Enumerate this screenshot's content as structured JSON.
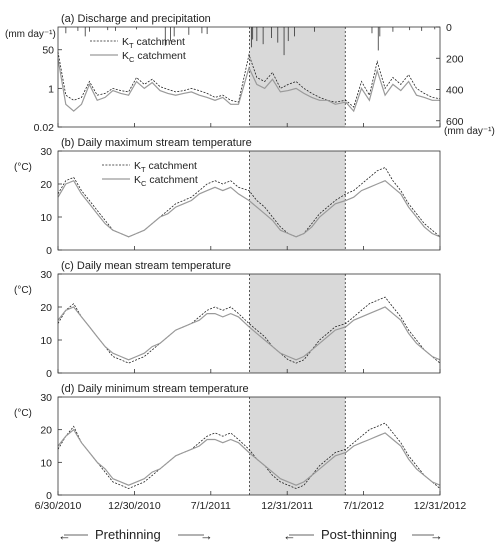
{
  "chart_data": {
    "type": "line",
    "x_tick_labels": [
      "6/30/2010",
      "12/30/2010",
      "7/1/2011",
      "12/31/2011",
      "7/1/2012",
      "12/31/2012"
    ],
    "shaded_period": [
      "7/1/2011",
      "12/31/2011"
    ],
    "period_labels": {
      "left": "Prethinning",
      "right": "Post-thinning"
    },
    "legend": [
      {
        "main": "K",
        "sub": "T",
        "rest": " catchment"
      },
      {
        "main": "K",
        "sub": "C",
        "rest": " catchment"
      }
    ],
    "panels": [
      {
        "id": "a",
        "title": "(a) Discharge and precipitation",
        "ylabel": "(mm day⁻¹)",
        "y_scale": "log",
        "ylim": [
          0.02,
          500
        ],
        "yticks": [
          "50",
          "1",
          "0.02"
        ],
        "y2_label": "(mm day⁻¹)",
        "y2_ticks": [
          "0",
          "200",
          "400",
          "600"
        ],
        "y2_lim": [
          0,
          640
        ],
        "series": [
          {
            "name": "KT catchment",
            "x": [
              0,
              15,
              30,
              45,
              60,
              75,
              90,
              105,
              120,
              135,
              150,
              165,
              180,
              195,
              210,
              225,
              240,
              255,
              270,
              285,
              300,
              315,
              330,
              345,
              365,
              380,
              395,
              410,
              425,
              440,
              455,
              470,
              485,
              500,
              515,
              530,
              550,
              565,
              580,
              595,
              610,
              625,
              640,
              655,
              670,
              685,
              700,
              715,
              730
            ],
            "values": [
              40,
              0.5,
              0.3,
              0.4,
              2.0,
              0.5,
              0.6,
              1.0,
              0.8,
              0.7,
              3.0,
              1.5,
              2.5,
              1.2,
              0.9,
              0.7,
              0.8,
              1.0,
              0.8,
              0.6,
              0.4,
              0.5,
              0.3,
              0.25,
              30,
              3.0,
              2.0,
              5.0,
              1.0,
              1.5,
              2.0,
              1.0,
              0.6,
              0.4,
              0.3,
              0.25,
              0.3,
              0.15,
              2.0,
              0.5,
              15,
              1.0,
              3.0,
              1.5,
              4.0,
              1.0,
              0.6,
              0.4,
              0.35
            ]
          },
          {
            "name": "KC catchment",
            "x": [
              0,
              15,
              30,
              45,
              60,
              75,
              90,
              105,
              120,
              135,
              150,
              165,
              180,
              195,
              210,
              225,
              240,
              255,
              270,
              285,
              300,
              315,
              330,
              345,
              365,
              380,
              395,
              410,
              425,
              440,
              455,
              470,
              485,
              500,
              515,
              530,
              550,
              565,
              580,
              595,
              610,
              625,
              640,
              655,
              670,
              685,
              700,
              715,
              730
            ],
            "values": [
              20,
              0.2,
              0.1,
              0.2,
              1.5,
              0.3,
              0.4,
              0.8,
              0.6,
              0.5,
              2.0,
              1.0,
              1.8,
              0.8,
              0.6,
              0.5,
              0.6,
              0.7,
              0.5,
              0.4,
              0.3,
              0.4,
              0.2,
              0.2,
              8.0,
              1.5,
              1.0,
              2.5,
              0.7,
              0.8,
              1.0,
              0.6,
              0.4,
              0.3,
              0.3,
              0.2,
              0.25,
              0.1,
              1.0,
              0.3,
              6.0,
              0.5,
              1.5,
              0.8,
              2.0,
              0.5,
              0.4,
              0.3,
              0.3
            ]
          },
          {
            "name": "Precipitation",
            "x": [
              15,
              38,
              52,
              60,
              95,
              110,
              150,
              205,
              215,
              222,
              250,
              275,
              285,
              370,
              372,
              380,
              392,
              408,
              420,
              432,
              440,
              452,
              490,
              600,
              612,
              615,
              640,
              672,
              695,
              720
            ],
            "values": [
              40,
              25,
              60,
              30,
              20,
              25,
              15,
              120,
              90,
              60,
              50,
              40,
              45,
              130,
              80,
              90,
              110,
              70,
              100,
              180,
              90,
              60,
              30,
              40,
              150,
              60,
              30,
              20,
              25,
              15
            ]
          }
        ]
      },
      {
        "id": "b",
        "title": "(b) Daily maximum stream temperature",
        "ylabel": "(°C)",
        "ylim": [
          0,
          30
        ],
        "yticks": [
          0,
          10,
          20,
          30
        ],
        "series": [
          {
            "name": "KT catchment",
            "x": [
              0,
              15,
              30,
              45,
              60,
              75,
              90,
              105,
              120,
              135,
              150,
              165,
              180,
              195,
              210,
              225,
              240,
              255,
              270,
              285,
              300,
              315,
              330,
              345,
              365,
              380,
              395,
              410,
              425,
              440,
              455,
              470,
              485,
              500,
              515,
              530,
              550,
              565,
              580,
              595,
              610,
              625,
              640,
              655,
              670,
              685,
              700,
              715,
              730
            ],
            "values": [
              17,
              21,
              22,
              18,
              15,
              12,
              9,
              6,
              5,
              4,
              5,
              6,
              8,
              10,
              12,
              14,
              15,
              16,
              18,
              20,
              21,
              20,
              21,
              19,
              18,
              15,
              13,
              10,
              7,
              5,
              4,
              5,
              8,
              11,
              13,
              15,
              17,
              18,
              20,
              22,
              24,
              25,
              21,
              18,
              14,
              11,
              8,
              6,
              4
            ]
          },
          {
            "name": "KC catchment",
            "x": [
              0,
              15,
              30,
              45,
              60,
              75,
              90,
              105,
              120,
              135,
              150,
              165,
              180,
              195,
              210,
              225,
              240,
              255,
              270,
              285,
              300,
              315,
              330,
              345,
              365,
              380,
              395,
              410,
              425,
              440,
              455,
              470,
              485,
              500,
              515,
              530,
              550,
              565,
              580,
              595,
              610,
              625,
              640,
              655,
              670,
              685,
              700,
              715,
              730
            ],
            "values": [
              16,
              20,
              21,
              17,
              14,
              11,
              8,
              6,
              5,
              4,
              5,
              6,
              8,
              10,
              11,
              13,
              14,
              15,
              17,
              18,
              19,
              18,
              19,
              17,
              15,
              13,
              11,
              9,
              6,
              5,
              4,
              5,
              7,
              10,
              12,
              14,
              15,
              16,
              18,
              19,
              20,
              21,
              19,
              17,
              13,
              10,
              7,
              5,
              4
            ]
          }
        ]
      },
      {
        "id": "c",
        "title": "(c) Daily mean stream temperature",
        "ylabel": "(°C)",
        "ylim": [
          0,
          30
        ],
        "yticks": [
          0,
          10,
          20,
          30
        ],
        "series": [
          {
            "name": "KT catchment",
            "x": [
              0,
              15,
              30,
              45,
              60,
              75,
              90,
              105,
              120,
              135,
              150,
              165,
              180,
              195,
              210,
              225,
              240,
              255,
              270,
              285,
              300,
              315,
              330,
              345,
              365,
              380,
              395,
              410,
              425,
              440,
              455,
              470,
              485,
              500,
              515,
              530,
              550,
              565,
              580,
              595,
              610,
              625,
              640,
              655,
              670,
              685,
              700,
              715,
              730
            ],
            "values": [
              15,
              19,
              21,
              17,
              14,
              11,
              8,
              5,
              4,
              3,
              4,
              5,
              7,
              9,
              11,
              13,
              14,
              15,
              17,
              19,
              20,
              19,
              20,
              18,
              15,
              13,
              11,
              8,
              6,
              4,
              3,
              4,
              7,
              10,
              12,
              14,
              15,
              17,
              19,
              21,
              22,
              23,
              20,
              17,
              13,
              10,
              7,
              5,
              3
            ]
          },
          {
            "name": "KC catchment",
            "x": [
              0,
              15,
              30,
              45,
              60,
              75,
              90,
              105,
              120,
              135,
              150,
              165,
              180,
              195,
              210,
              225,
              240,
              255,
              270,
              285,
              300,
              315,
              330,
              345,
              365,
              380,
              395,
              410,
              425,
              440,
              455,
              470,
              485,
              500,
              515,
              530,
              550,
              565,
              580,
              595,
              610,
              625,
              640,
              655,
              670,
              685,
              700,
              715,
              730
            ],
            "values": [
              16,
              19,
              20,
              17,
              14,
              11,
              8,
              6,
              5,
              4,
              5,
              6,
              8,
              9,
              11,
              13,
              14,
              15,
              16,
              18,
              18,
              17,
              18,
              17,
              14,
              12,
              10,
              8,
              6,
              5,
              4,
              5,
              7,
              9,
              11,
              13,
              14,
              16,
              17,
              18,
              19,
              20,
              18,
              16,
              12,
              9,
              7,
              5,
              4
            ]
          }
        ]
      },
      {
        "id": "d",
        "title": "(d) Daily minimum stream temperature",
        "ylabel": "(°C)",
        "ylim": [
          0,
          30
        ],
        "yticks": [
          0,
          10,
          20,
          30
        ],
        "series": [
          {
            "name": "KT catchment",
            "x": [
              0,
              15,
              30,
              45,
              60,
              75,
              90,
              105,
              120,
              135,
              150,
              165,
              180,
              195,
              210,
              225,
              240,
              255,
              270,
              285,
              300,
              315,
              330,
              345,
              365,
              380,
              395,
              410,
              425,
              440,
              455,
              470,
              485,
              500,
              515,
              530,
              550,
              565,
              580,
              595,
              610,
              625,
              640,
              655,
              670,
              685,
              700,
              715,
              730
            ],
            "values": [
              14,
              18,
              21,
              16,
              13,
              10,
              7,
              4,
              3,
              2,
              3,
              4,
              6,
              8,
              10,
              12,
              13,
              14,
              16,
              18,
              19,
              18,
              19,
              17,
              14,
              11,
              9,
              6,
              4,
              3,
              2,
              3,
              6,
              9,
              11,
              13,
              14,
              16,
              18,
              20,
              21,
              22,
              19,
              16,
              12,
              9,
              6,
              4,
              2
            ]
          },
          {
            "name": "KC catchment",
            "x": [
              0,
              15,
              30,
              45,
              60,
              75,
              90,
              105,
              120,
              135,
              150,
              165,
              180,
              195,
              210,
              225,
              240,
              255,
              270,
              285,
              300,
              315,
              330,
              345,
              365,
              380,
              395,
              410,
              425,
              440,
              455,
              470,
              485,
              500,
              515,
              530,
              550,
              565,
              580,
              595,
              610,
              625,
              640,
              655,
              670,
              685,
              700,
              715,
              730
            ],
            "values": [
              15,
              18,
              20,
              16,
              13,
              10,
              8,
              5,
              4,
              3,
              4,
              5,
              7,
              8,
              10,
              12,
              13,
              14,
              15,
              17,
              17,
              16,
              17,
              16,
              13,
              11,
              9,
              7,
              5,
              4,
              3,
              4,
              6,
              8,
              10,
              12,
              13,
              15,
              16,
              17,
              18,
              19,
              17,
              15,
              11,
              8,
              6,
              4,
              3
            ]
          }
        ]
      }
    ]
  }
}
